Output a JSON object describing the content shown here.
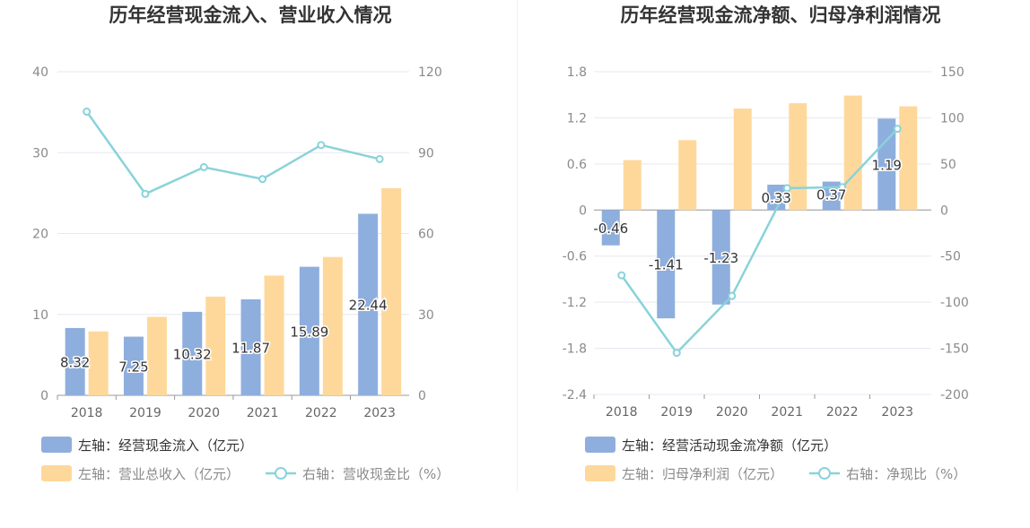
{
  "chart_data": [
    {
      "type": "bar",
      "title": "历年经营现金流入、营业收入情况",
      "categories": [
        "2018",
        "2019",
        "2020",
        "2021",
        "2022",
        "2023"
      ],
      "left_axis": {
        "ylim": [
          0,
          40
        ],
        "ticks": [
          "0",
          "10",
          "20",
          "30",
          "40"
        ]
      },
      "right_axis": {
        "ylim": [
          0,
          120
        ],
        "ticks": [
          "0",
          "30",
          "60",
          "90",
          "120"
        ]
      },
      "series": [
        {
          "name": "左轴：经营现金流入（亿元）",
          "type": "bar",
          "axis": "left",
          "color": "#8eaedd",
          "values": [
            8.32,
            7.25,
            10.32,
            11.87,
            15.89,
            22.44
          ],
          "labels": [
            "8.32",
            "7.25",
            "10.32",
            "11.87",
            "15.89",
            "22.44"
          ]
        },
        {
          "name": "左轴：营业总收入（亿元）",
          "type": "bar",
          "axis": "left",
          "color": "#fed89b",
          "values": [
            7.9,
            9.7,
            12.2,
            14.8,
            17.1,
            25.6
          ]
        },
        {
          "name": "右轴：营收现金比（%）",
          "type": "line",
          "axis": "right",
          "color": "#89d3d9",
          "values": [
            105.2,
            74.7,
            84.6,
            80.2,
            92.8,
            87.6
          ]
        }
      ],
      "grid": true,
      "legend_position": "bottom-left"
    },
    {
      "type": "bar",
      "title": "历年经营现金流净额、归母净利润情况",
      "categories": [
        "2018",
        "2019",
        "2020",
        "2021",
        "2022",
        "2023"
      ],
      "left_axis": {
        "ylim": [
          -2.4,
          1.8
        ],
        "ticks": [
          "-2.4",
          "-1.8",
          "-1.2",
          "-0.6",
          "0",
          "0.6",
          "1.2",
          "1.8"
        ]
      },
      "right_axis": {
        "ylim": [
          -200,
          150
        ],
        "ticks": [
          "-200",
          "-150",
          "-100",
          "-50",
          "0",
          "50",
          "100",
          "150"
        ]
      },
      "series": [
        {
          "name": "左轴：经营活动现金流净额（亿元）",
          "type": "bar",
          "axis": "left",
          "color": "#8eaedd",
          "values": [
            -0.46,
            -1.41,
            -1.23,
            0.33,
            0.37,
            1.19
          ],
          "labels": [
            "-0.46",
            "-1.41",
            "-1.23",
            "0.33",
            "0.37",
            "1.19"
          ]
        },
        {
          "name": "左轴：归母净利润（亿元）",
          "type": "bar",
          "axis": "left",
          "color": "#fed89b",
          "values": [
            0.65,
            0.91,
            1.32,
            1.39,
            1.49,
            1.35
          ]
        },
        {
          "name": "右轴：净现比（%）",
          "type": "line",
          "axis": "right",
          "color": "#89d3d9",
          "values": [
            -70.8,
            -154.9,
            -93.2,
            23.7,
            24.8,
            88.1
          ]
        }
      ],
      "grid": true,
      "legend_position": "bottom-left"
    }
  ]
}
